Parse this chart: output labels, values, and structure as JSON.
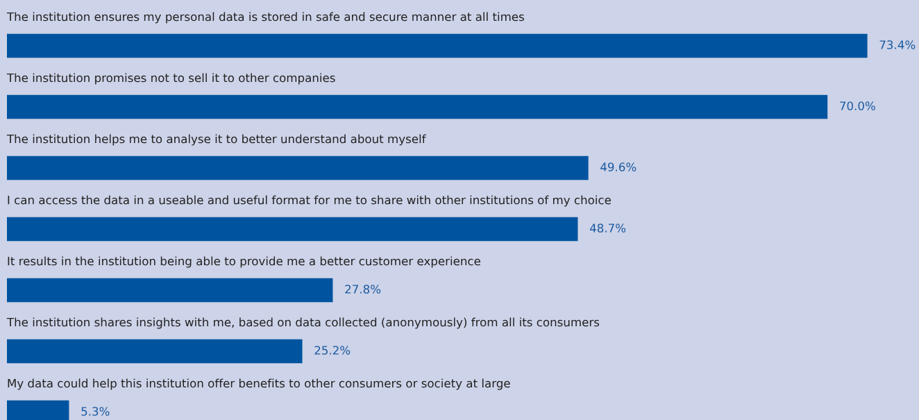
{
  "chart_data": {
    "type": "bar",
    "orientation": "horizontal",
    "categories": [
      "The institution ensures my personal data is stored in safe and secure manner at all times",
      "The institution promises not to sell it to other companies",
      "The institution helps me to analyse it to better understand about myself",
      "I can access the data in a useable and useful format for me to share with other institutions of my choice",
      "It results in the institution being able to provide me a better customer experience",
      "The institution shares insights with me, based on data collected (anonymously) from all its consumers",
      "My data could help this institution offer benefits to other consumers or society at large"
    ],
    "values": [
      73.4,
      70.0,
      49.6,
      48.7,
      27.8,
      25.2,
      5.3
    ],
    "value_labels": [
      "73.4%",
      "70.0%",
      "49.6%",
      "48.7%",
      "27.8%",
      "25.2%",
      "5.3%"
    ],
    "color": "#00549f"
  }
}
